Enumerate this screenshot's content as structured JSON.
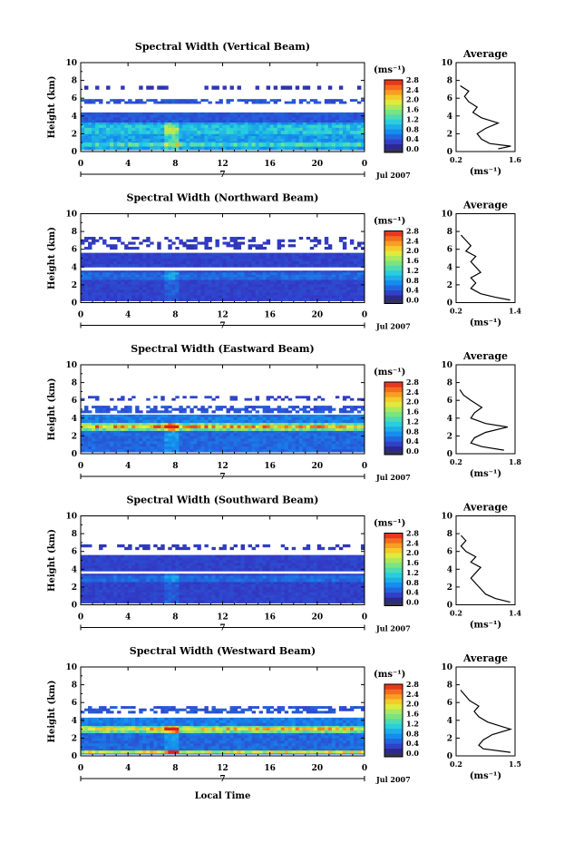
{
  "figure": {
    "xlabel": "Local Time",
    "date_label": "Jul 2007",
    "day_label": "7",
    "colorbar_unit": "(ms⁻¹)",
    "average_unit": "(ms⁻¹)"
  },
  "chart_data": [
    {
      "type": "heatmap",
      "title": "Spectral Width (Vertical Beam)",
      "ylabel": "Height (km)",
      "xlim": [
        0,
        24
      ],
      "ylim": [
        0,
        10
      ],
      "xticks": [
        "0",
        "4",
        "8",
        "12",
        "16",
        "20",
        "0"
      ],
      "yticks": [
        "0",
        "2",
        "4",
        "6",
        "8",
        "10"
      ],
      "colorbar": {
        "range": [
          0,
          2.8
        ],
        "ticks": [
          "0.0",
          "0.4",
          "0.8",
          "1.2",
          "1.6",
          "2.0",
          "2.4",
          "2.8"
        ]
      },
      "layers": [
        {
          "y0": 0.2,
          "y1": 3.3,
          "value": 0.8
        },
        {
          "y0": 0.6,
          "y1": 1.0,
          "value": 1.2
        },
        {
          "y0": 2.0,
          "y1": 3.0,
          "value": 1.0
        },
        {
          "y0": 3.3,
          "y1": 4.4,
          "value": 0.4
        },
        {
          "y0": 5.4,
          "y1": 5.9,
          "value": 0.4
        },
        {
          "y0": 7.0,
          "y1": 7.4,
          "value": 0.2
        }
      ],
      "average": {
        "title": "Average",
        "xlim": [
          0.2,
          1.6
        ],
        "xticks": [
          "0.2",
          "1.6"
        ],
        "yticks": [
          "0",
          "2",
          "4",
          "6",
          "8",
          "10"
        ],
        "profile": [
          [
            0.3,
            7.4
          ],
          [
            0.5,
            6.8
          ],
          [
            0.4,
            6.2
          ],
          [
            0.5,
            5.6
          ],
          [
            0.7,
            5.0
          ],
          [
            0.6,
            4.4
          ],
          [
            0.8,
            3.8
          ],
          [
            1.2,
            3.2
          ],
          [
            0.9,
            2.6
          ],
          [
            0.7,
            2.0
          ],
          [
            0.8,
            1.4
          ],
          [
            1.0,
            0.9
          ],
          [
            1.5,
            0.6
          ],
          [
            1.2,
            0.3
          ]
        ]
      }
    },
    {
      "type": "heatmap",
      "title": "Spectral Width (Northward Beam)",
      "ylabel": "Height (km)",
      "xlim": [
        0,
        24
      ],
      "ylim": [
        0,
        10
      ],
      "xticks": [
        "0",
        "4",
        "8",
        "12",
        "16",
        "20",
        "0"
      ],
      "yticks": [
        "0",
        "2",
        "4",
        "6",
        "8",
        "10"
      ],
      "colorbar": {
        "range": [
          0,
          2.8
        ],
        "ticks": [
          "0.0",
          "0.4",
          "0.8",
          "1.2",
          "1.6",
          "2.0",
          "2.4",
          "2.8"
        ]
      },
      "layers": [
        {
          "y0": 0.2,
          "y1": 3.6,
          "value": 0.3
        },
        {
          "y0": 2.6,
          "y1": 3.4,
          "value": 0.5
        },
        {
          "y0": 4.0,
          "y1": 5.6,
          "value": 0.3
        },
        {
          "y0": 6.0,
          "y1": 7.4,
          "value": 0.25
        }
      ],
      "average": {
        "title": "Average",
        "xlim": [
          0.2,
          1.4
        ],
        "xticks": [
          "0.2",
          "1.4"
        ],
        "yticks": [
          "0",
          "2",
          "4",
          "6",
          "8",
          "10"
        ],
        "profile": [
          [
            0.3,
            7.6
          ],
          [
            0.4,
            7.0
          ],
          [
            0.5,
            6.4
          ],
          [
            0.4,
            5.8
          ],
          [
            0.6,
            5.2
          ],
          [
            0.5,
            4.6
          ],
          [
            0.6,
            4.0
          ],
          [
            0.7,
            3.4
          ],
          [
            0.5,
            2.8
          ],
          [
            0.6,
            2.2
          ],
          [
            0.5,
            1.6
          ],
          [
            0.7,
            1.0
          ],
          [
            1.0,
            0.6
          ],
          [
            1.3,
            0.3
          ]
        ]
      }
    },
    {
      "type": "heatmap",
      "title": "Spectral Width (Eastward Beam)",
      "ylabel": "Height (km)",
      "xlim": [
        0,
        24
      ],
      "ylim": [
        0,
        10
      ],
      "xticks": [
        "0",
        "4",
        "8",
        "12",
        "16",
        "20",
        "0"
      ],
      "yticks": [
        "0",
        "2",
        "4",
        "6",
        "8",
        "10"
      ],
      "colorbar": {
        "range": [
          0,
          2.8
        ],
        "ticks": [
          "0.0",
          "0.4",
          "0.8",
          "1.2",
          "1.6",
          "2.0",
          "2.4",
          "2.8"
        ]
      },
      "layers": [
        {
          "y0": 0.2,
          "y1": 2.6,
          "value": 0.5
        },
        {
          "y0": 2.6,
          "y1": 3.5,
          "value": 1.4
        },
        {
          "y0": 2.9,
          "y1": 3.2,
          "value": 2.2
        },
        {
          "y0": 3.5,
          "y1": 4.4,
          "value": 0.6
        },
        {
          "y0": 4.6,
          "y1": 5.4,
          "value": 0.4
        },
        {
          "y0": 6.0,
          "y1": 6.5,
          "value": 0.3
        }
      ],
      "average": {
        "title": "Average",
        "xlim": [
          0.2,
          1.8
        ],
        "xticks": [
          "0.2",
          "1.8"
        ],
        "yticks": [
          "0",
          "2",
          "4",
          "6",
          "8",
          "10"
        ],
        "profile": [
          [
            0.3,
            7.2
          ],
          [
            0.4,
            6.6
          ],
          [
            0.6,
            6.0
          ],
          [
            0.9,
            5.2
          ],
          [
            0.7,
            4.6
          ],
          [
            0.6,
            4.0
          ],
          [
            1.0,
            3.4
          ],
          [
            1.6,
            3.0
          ],
          [
            1.0,
            2.4
          ],
          [
            0.7,
            1.8
          ],
          [
            0.6,
            1.2
          ],
          [
            0.9,
            0.8
          ],
          [
            1.5,
            0.4
          ]
        ]
      }
    },
    {
      "type": "heatmap",
      "title": "Spectral Width (Southward Beam)",
      "ylabel": "Height (km)",
      "xlim": [
        0,
        24
      ],
      "ylim": [
        0,
        10
      ],
      "xticks": [
        "0",
        "4",
        "8",
        "12",
        "16",
        "20",
        "0"
      ],
      "yticks": [
        "0",
        "2",
        "4",
        "6",
        "8",
        "10"
      ],
      "colorbar": {
        "range": [
          0,
          2.8
        ],
        "ticks": [
          "0.0",
          "0.4",
          "0.8",
          "1.2",
          "1.6",
          "2.0",
          "2.4",
          "2.8"
        ]
      },
      "layers": [
        {
          "y0": 0.2,
          "y1": 3.5,
          "value": 0.3
        },
        {
          "y0": 2.6,
          "y1": 3.3,
          "value": 0.5
        },
        {
          "y0": 3.8,
          "y1": 5.6,
          "value": 0.3
        },
        {
          "y0": 6.2,
          "y1": 6.8,
          "value": 0.25
        }
      ],
      "average": {
        "title": "Average",
        "xlim": [
          0.2,
          1.4
        ],
        "xticks": [
          "0.2",
          "1.4"
        ],
        "yticks": [
          "0",
          "2",
          "4",
          "6",
          "8",
          "10"
        ],
        "profile": [
          [
            0.3,
            7.8
          ],
          [
            0.4,
            7.2
          ],
          [
            0.3,
            6.6
          ],
          [
            0.4,
            6.0
          ],
          [
            0.6,
            5.4
          ],
          [
            0.5,
            4.8
          ],
          [
            0.7,
            4.2
          ],
          [
            0.6,
            3.6
          ],
          [
            0.5,
            3.0
          ],
          [
            0.6,
            2.4
          ],
          [
            0.7,
            1.8
          ],
          [
            0.8,
            1.2
          ],
          [
            1.0,
            0.7
          ],
          [
            1.3,
            0.3
          ]
        ]
      }
    },
    {
      "type": "heatmap",
      "title": "Spectral Width (Westward Beam)",
      "ylabel": "Height (km)",
      "xlim": [
        0,
        24
      ],
      "ylim": [
        0,
        10
      ],
      "xticks": [
        "0",
        "4",
        "8",
        "12",
        "16",
        "20",
        "0"
      ],
      "yticks": [
        "0",
        "2",
        "4",
        "6",
        "8",
        "10"
      ],
      "colorbar": {
        "range": [
          0,
          2.8
        ],
        "ticks": [
          "0.0",
          "0.4",
          "0.8",
          "1.2",
          "1.6",
          "2.0",
          "2.4",
          "2.8"
        ]
      },
      "layers": [
        {
          "y0": 0.2,
          "y1": 2.6,
          "value": 0.5
        },
        {
          "y0": 0.3,
          "y1": 0.6,
          "value": 1.8
        },
        {
          "y0": 2.6,
          "y1": 3.4,
          "value": 1.4
        },
        {
          "y0": 2.9,
          "y1": 3.2,
          "value": 2.0
        },
        {
          "y0": 3.4,
          "y1": 4.3,
          "value": 0.6
        },
        {
          "y0": 4.8,
          "y1": 5.6,
          "value": 0.4
        }
      ],
      "average": {
        "title": "Average",
        "xlim": [
          0.2,
          1.5
        ],
        "xticks": [
          "0.2",
          "1.5"
        ],
        "yticks": [
          "0",
          "2",
          "4",
          "6",
          "8",
          "10"
        ],
        "profile": [
          [
            0.3,
            7.4
          ],
          [
            0.4,
            6.8
          ],
          [
            0.5,
            6.2
          ],
          [
            0.7,
            5.6
          ],
          [
            0.6,
            5.0
          ],
          [
            0.7,
            4.4
          ],
          [
            0.9,
            3.8
          ],
          [
            1.4,
            3.0
          ],
          [
            1.0,
            2.4
          ],
          [
            0.8,
            1.8
          ],
          [
            0.7,
            1.2
          ],
          [
            0.8,
            0.8
          ],
          [
            1.4,
            0.4
          ]
        ]
      }
    }
  ]
}
